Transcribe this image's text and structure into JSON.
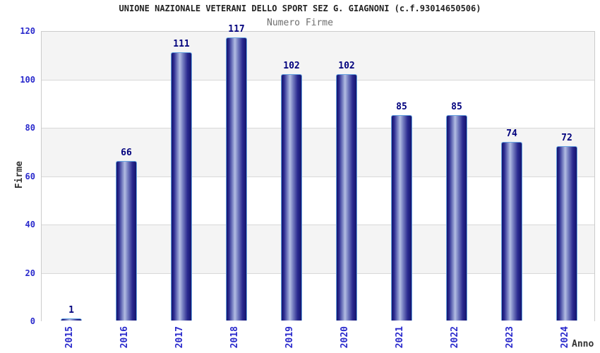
{
  "title": "UNIONE NAZIONALE VETERANI DELLO SPORT SEZ G. GIAGNONI (c.f.93014650506)",
  "subtitle": "Numero Firme",
  "chart_data": {
    "type": "bar",
    "title": "UNIONE NAZIONALE VETERANI DELLO SPORT SEZ G. GIAGNONI (c.f.93014650506)",
    "subtitle": "Numero Firme",
    "categories": [
      "2015",
      "2016",
      "2017",
      "2018",
      "2019",
      "2020",
      "2021",
      "2022",
      "2023",
      "2024"
    ],
    "values": [
      1,
      66,
      111,
      117,
      102,
      102,
      85,
      85,
      74,
      72
    ],
    "xlabel": "Anno",
    "ylabel": "Firme",
    "ylim": [
      0,
      120
    ],
    "yticks": [
      0,
      20,
      40,
      60,
      80,
      100,
      120
    ],
    "grid": "alternating-horizontal-bands",
    "legend": "none"
  },
  "colors": {
    "title": "#222222",
    "subtitle": "#6e6e6e",
    "tick_label": "#2929cc",
    "value_label": "#00007d",
    "axis_title": "#333333",
    "bar_dark": "#14146e",
    "bar_dark2": "#2b2b90",
    "bar_mid": "#7b84c4",
    "bar_light": "#b2bce2",
    "bar_border": "#66a3e0",
    "band_gray": "#f4f4f4",
    "band_white": "#ffffff",
    "grid_line": "#d8d8d8",
    "plot_border": "#cccccc"
  }
}
